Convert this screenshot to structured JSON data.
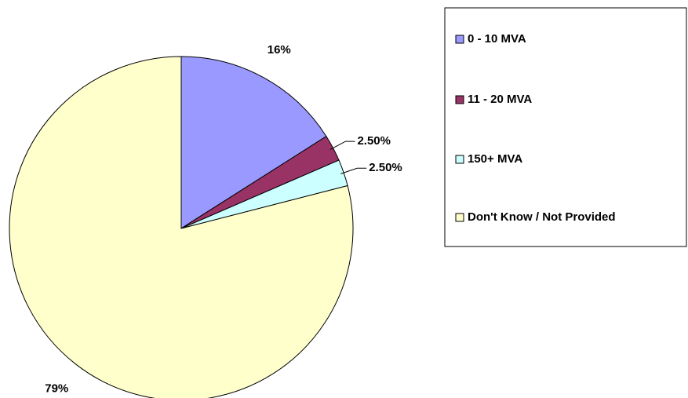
{
  "chart_data": {
    "type": "pie",
    "categories": [
      "0 - 10 MVA",
      "11 - 20 MVA",
      "150+ MVA",
      "Don't Know / Not Provided"
    ],
    "values": [
      16,
      2.5,
      2.5,
      79
    ],
    "value_labels": [
      "16%",
      "2.50%",
      "2.50%",
      "79%"
    ],
    "colors": [
      "#9999ff",
      "#993366",
      "#ccffff",
      "#ffffcc"
    ],
    "legend": "right"
  }
}
